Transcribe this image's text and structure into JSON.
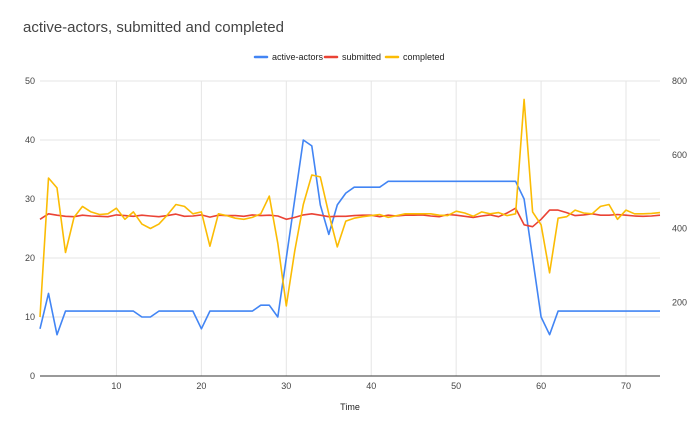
{
  "chart_data": {
    "type": "line",
    "title": "active-actors, submitted and completed",
    "xlabel": "Time",
    "ylabel_left": "",
    "ylabel_right": "",
    "xlim": [
      1,
      74
    ],
    "ylim_left": [
      0,
      50
    ],
    "ylim_right": [
      0,
      800
    ],
    "x_ticks": [
      10,
      20,
      30,
      40,
      50,
      60,
      70
    ],
    "y_ticks_left": [
      0,
      10,
      20,
      30,
      40,
      50
    ],
    "y_ticks_right": [
      200,
      400,
      600,
      800
    ],
    "grid": true,
    "legend_position": "top",
    "x": [
      1,
      2,
      3,
      4,
      5,
      6,
      7,
      8,
      9,
      10,
      11,
      12,
      13,
      14,
      15,
      16,
      17,
      18,
      19,
      20,
      21,
      22,
      23,
      24,
      25,
      26,
      27,
      28,
      29,
      30,
      31,
      32,
      33,
      34,
      35,
      36,
      37,
      38,
      39,
      40,
      41,
      42,
      43,
      44,
      45,
      46,
      47,
      48,
      49,
      50,
      51,
      52,
      53,
      54,
      55,
      56,
      57,
      58,
      59,
      60,
      61,
      62,
      63,
      64,
      65,
      66,
      67,
      68,
      69,
      70,
      71,
      72,
      73,
      74
    ],
    "series": [
      {
        "name": "active-actors",
        "axis": "left",
        "color": "#4285f4",
        "values": [
          8,
          14,
          7,
          11,
          11,
          11,
          11,
          11,
          11,
          11,
          11,
          11,
          10,
          10,
          11,
          11,
          11,
          11,
          11,
          8,
          11,
          11,
          11,
          11,
          11,
          11,
          12,
          12,
          10,
          20,
          30,
          40,
          39,
          29,
          24,
          29,
          31,
          32,
          32,
          32,
          32,
          33,
          33,
          33,
          33,
          33,
          33,
          33,
          33,
          33,
          33,
          33,
          33,
          33,
          33,
          33,
          33,
          30,
          20,
          10,
          7,
          11,
          11,
          11,
          11,
          11,
          11,
          11,
          11,
          11,
          11,
          11,
          11,
          11
        ]
      },
      {
        "name": "submitted",
        "axis": "right",
        "color": "#ea4335",
        "values": [
          425,
          440,
          436,
          433,
          432,
          436,
          434,
          433,
          432,
          437,
          435,
          433,
          436,
          434,
          432,
          435,
          439,
          433,
          434,
          437,
          431,
          436,
          435,
          435,
          433,
          437,
          435,
          436,
          434,
          425,
          430,
          437,
          440,
          436,
          432,
          433,
          433,
          435,
          436,
          436,
          432,
          436,
          434,
          436,
          436,
          437,
          434,
          432,
          438,
          436,
          433,
          430,
          434,
          437,
          432,
          442,
          455,
          410,
          405,
          425,
          450,
          450,
          443,
          435,
          437,
          440,
          436,
          436,
          438,
          436,
          434,
          433,
          434,
          436
        ]
      },
      {
        "name": "completed",
        "axis": "right",
        "color": "#fbbc04",
        "values": [
          160,
          537,
          510,
          335,
          430,
          460,
          445,
          438,
          440,
          455,
          425,
          445,
          412,
          400,
          412,
          437,
          465,
          460,
          440,
          445,
          352,
          440,
          435,
          428,
          425,
          430,
          440,
          488,
          360,
          190,
          340,
          465,
          545,
          540,
          440,
          350,
          420,
          428,
          432,
          435,
          438,
          430,
          435,
          440,
          440,
          440,
          440,
          436,
          435,
          447,
          442,
          433,
          445,
          440,
          443,
          435,
          440,
          750,
          445,
          410,
          280,
          428,
          432,
          450,
          442,
          440,
          460,
          465,
          425,
          450,
          440,
          440,
          441,
          443
        ]
      }
    ]
  }
}
